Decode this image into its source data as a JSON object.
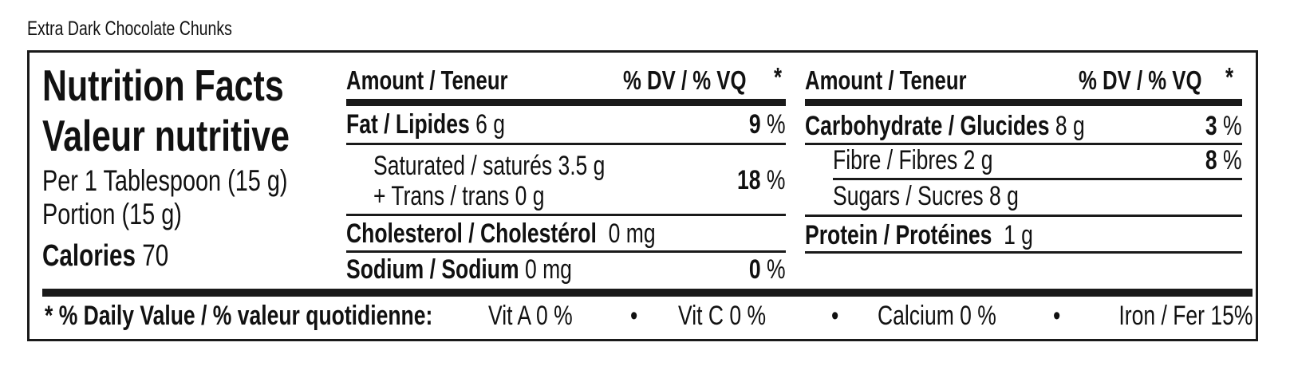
{
  "product_name": "Extra Dark Chocolate Chunks",
  "header": {
    "title_en": "Nutrition Facts",
    "title_fr": "Valeur nutritive",
    "serving_en": "Per 1 Tablespoon (15 g)",
    "serving_fr": "Portion (15 g)",
    "calories_label": "Calories",
    "calories_value": "70"
  },
  "columns": {
    "amount_label": "Amount / Teneur",
    "dv_label": "% DV / % VQ",
    "asterisk": "*"
  },
  "left_table": {
    "fat": {
      "label": "Fat / Lipides",
      "amount": "6 g",
      "dv": "9",
      "pct": "%"
    },
    "saturated": {
      "label": "Saturated / saturés 3.5 g",
      "trans": "+ Trans / trans 0 g",
      "dv": "18",
      "pct": "%"
    },
    "cholesterol": {
      "label": "Cholesterol / Cholestérol",
      "amount": "0 mg"
    },
    "sodium": {
      "label": "Sodium / Sodium",
      "amount": "0 mg",
      "dv": "0",
      "pct": "%"
    }
  },
  "right_table": {
    "carbohydrate": {
      "label": "Carbohydrate / Glucides",
      "amount": "8 g",
      "dv": "3",
      "pct": "%"
    },
    "fibre": {
      "label": "Fibre / Fibres 2 g",
      "dv": "8",
      "pct": "%"
    },
    "sugars": {
      "label": "Sugars / Sucres 8 g"
    },
    "protein": {
      "label": "Protein / Protéines",
      "amount": "1 g"
    }
  },
  "footer": {
    "label": "* % Daily Value / % valeur quotidienne:",
    "bullet": "•",
    "vitamins": [
      "Vit A 0 %",
      "Vit C 0 %",
      "Calcium 0 %",
      "Iron / Fer 15%"
    ]
  }
}
